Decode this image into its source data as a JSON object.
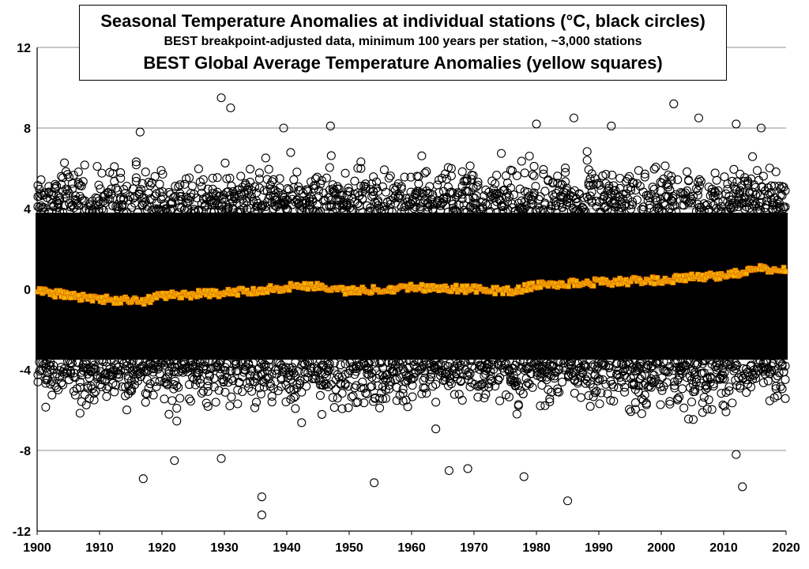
{
  "chart_data": {
    "type": "scatter",
    "title": "Seasonal Temperature Anomalies at individual stations (°C, black circles)",
    "subtitle": "BEST breakpoint-adjusted data, minimum 100 years per station, ~3,000 stations",
    "title2": "BEST Global Average Temperature Anomalies (yellow squares)",
    "xlim": [
      1900,
      2020
    ],
    "ylim": [
      -12,
      12
    ],
    "xticks": [
      "1900",
      "1910",
      "1920",
      "1930",
      "1940",
      "1950",
      "1960",
      "1970",
      "1980",
      "1990",
      "2000",
      "2010",
      "2020"
    ],
    "yticks": [
      "12",
      "8",
      "4",
      "0",
      "-4",
      "-8",
      "-12"
    ],
    "grid": "horizontal",
    "station_series": {
      "marker": "open-circle",
      "color": "#000000",
      "typical_range": [
        -3.5,
        3.8
      ],
      "extreme_points": [
        {
          "x": 1929.5,
          "y": 9.5
        },
        {
          "x": 1931.0,
          "y": 9.0
        },
        {
          "x": 2002.0,
          "y": 9.2
        },
        {
          "x": 1916.5,
          "y": 7.8
        },
        {
          "x": 1939.5,
          "y": 8.0
        },
        {
          "x": 1947.0,
          "y": 8.1
        },
        {
          "x": 1986.0,
          "y": 8.5
        },
        {
          "x": 2006.0,
          "y": 8.5
        },
        {
          "x": 1980.0,
          "y": 8.2
        },
        {
          "x": 1992.0,
          "y": 8.1
        },
        {
          "x": 2012.0,
          "y": 8.2
        },
        {
          "x": 2016.0,
          "y": 8.0
        },
        {
          "x": 1936.0,
          "y": -11.2
        },
        {
          "x": 1936.0,
          "y": -10.3
        },
        {
          "x": 1985.0,
          "y": -10.5
        },
        {
          "x": 2013.0,
          "y": -9.8
        },
        {
          "x": 1917.0,
          "y": -9.4
        },
        {
          "x": 1954.0,
          "y": -9.6
        },
        {
          "x": 1978.0,
          "y": -9.3
        },
        {
          "x": 1966.0,
          "y": -9.0
        },
        {
          "x": 1969.0,
          "y": -8.9
        },
        {
          "x": 2012.0,
          "y": -8.2
        },
        {
          "x": 1922.0,
          "y": -8.5
        },
        {
          "x": 1929.5,
          "y": -8.4
        }
      ]
    },
    "global_series": {
      "marker": "square",
      "color": "#f5b400",
      "edge_color": "#e07000",
      "anchors": [
        {
          "x": 1900,
          "y": -0.1
        },
        {
          "x": 1905,
          "y": -0.3
        },
        {
          "x": 1910,
          "y": -0.5
        },
        {
          "x": 1917,
          "y": -0.6
        },
        {
          "x": 1920,
          "y": -0.3
        },
        {
          "x": 1930,
          "y": -0.2
        },
        {
          "x": 1940,
          "y": 0.1
        },
        {
          "x": 1944,
          "y": 0.2
        },
        {
          "x": 1950,
          "y": -0.1
        },
        {
          "x": 1960,
          "y": 0.1
        },
        {
          "x": 1970,
          "y": 0.0
        },
        {
          "x": 1976,
          "y": -0.1
        },
        {
          "x": 1980,
          "y": 0.2
        },
        {
          "x": 1990,
          "y": 0.35
        },
        {
          "x": 2000,
          "y": 0.45
        },
        {
          "x": 2010,
          "y": 0.7
        },
        {
          "x": 2016,
          "y": 1.0
        },
        {
          "x": 2020,
          "y": 0.95
        }
      ]
    }
  }
}
